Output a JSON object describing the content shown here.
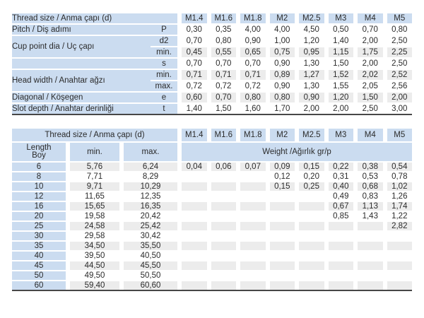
{
  "colors": {
    "header_blue": "#cbdcf0",
    "band_gray": "#ececec",
    "border_dark": "#474747",
    "text": "#2b2b2b"
  },
  "sizes": [
    "M1.4",
    "M1.6",
    "M1.8",
    "M2",
    "M2.5",
    "M3",
    "M4",
    "M5"
  ],
  "spec_table": {
    "header_label": "Thread size / Anma çapı (d)",
    "rows": [
      {
        "label": "Pitch / Diş adımı",
        "span": 1,
        "sym": "P",
        "band": false,
        "values": [
          "0,30",
          "0,35",
          "4,00",
          "4,00",
          "4,50",
          "0,50",
          "0,70",
          "0,80"
        ]
      },
      {
        "label": "Cup point dia / Uç çapı",
        "span": 2,
        "sym": "d2",
        "band": false,
        "values": [
          "0,70",
          "0,80",
          "0,90",
          "1,00",
          "1,20",
          "1,40",
          "2,00",
          "2,50"
        ]
      },
      {
        "sym": "min.",
        "band": true,
        "values": [
          "0,45",
          "0,55",
          "0,65",
          "0,75",
          "0,95",
          "1,15",
          "1,75",
          "2,25"
        ]
      },
      {
        "label": "",
        "span": 1,
        "sym": "s",
        "band": false,
        "values": [
          "0,70",
          "0,70",
          "0,70",
          "0,90",
          "1,30",
          "1,50",
          "2,00",
          "2,50"
        ]
      },
      {
        "label": "Head width / Anahtar ağzı",
        "span": 2,
        "sym": "min.",
        "band": true,
        "values": [
          "0,71",
          "0,71",
          "0,71",
          "0,89",
          "1,27",
          "1,52",
          "2,02",
          "2,52"
        ]
      },
      {
        "sym": "max.",
        "band": false,
        "values": [
          "0,72",
          "0,72",
          "0,72",
          "0,90",
          "1,30",
          "1,55",
          "2,05",
          "2,56"
        ]
      },
      {
        "label": "Diagonal / Köşegen",
        "span": 1,
        "sym": "e",
        "band": true,
        "values": [
          "0,60",
          "0,70",
          "0,80",
          "0,80",
          "0,90",
          "1,20",
          "1,50",
          "2,00"
        ]
      },
      {
        "label": "Slot depth / Anahtar derinliği",
        "span": 1,
        "sym": "t",
        "band": false,
        "values": [
          "1,40",
          "1,50",
          "1,60",
          "1,70",
          "2,00",
          "2,00",
          "2,50",
          "3,00"
        ]
      }
    ]
  },
  "weight_table": {
    "header_label": "Thread size / Anma çapı (d)",
    "length_label_line1": "Length",
    "length_label_line2": "Boy",
    "min_label": "min.",
    "max_label": "max.",
    "weight_label": "Weight /Ağırlık gr/p",
    "rows": [
      {
        "len": "6",
        "min": "5,76",
        "max": "6,24",
        "band": true,
        "w": [
          "0,04",
          "0,06",
          "0,07",
          "0,09",
          "0,15",
          "0,22",
          "0,38",
          "0,54"
        ]
      },
      {
        "len": "8",
        "min": "7,71",
        "max": "8,29",
        "band": false,
        "w": [
          "",
          "",
          "",
          "0,12",
          "0,20",
          "0,31",
          "0,53",
          "0,78"
        ]
      },
      {
        "len": "10",
        "min": "9,71",
        "max": "10,29",
        "band": true,
        "w": [
          "",
          "",
          "",
          "0,15",
          "0,25",
          "0,40",
          "0,68",
          "1,02"
        ]
      },
      {
        "len": "12",
        "min": "11,65",
        "max": "12,35",
        "band": false,
        "w": [
          "",
          "",
          "",
          "",
          "",
          "0,49",
          "0,83",
          "1,26"
        ]
      },
      {
        "len": "16",
        "min": "15,65",
        "max": "16,35",
        "band": true,
        "w": [
          "",
          "",
          "",
          "",
          "",
          "0,67",
          "1,13",
          "1,74"
        ]
      },
      {
        "len": "20",
        "min": "19,58",
        "max": "20,42",
        "band": false,
        "w": [
          "",
          "",
          "",
          "",
          "",
          "0,85",
          "1,43",
          "1,22"
        ]
      },
      {
        "len": "25",
        "min": "24,58",
        "max": "25,42",
        "band": true,
        "w": [
          "",
          "",
          "",
          "",
          "",
          "",
          "",
          "2,82"
        ]
      },
      {
        "len": "30",
        "min": "29,58",
        "max": "30,42",
        "band": false,
        "w": [
          "",
          "",
          "",
          "",
          "",
          "",
          "",
          ""
        ]
      },
      {
        "len": "35",
        "min": "34,50",
        "max": "35,50",
        "band": true,
        "w": [
          "",
          "",
          "",
          "",
          "",
          "",
          "",
          ""
        ]
      },
      {
        "len": "40",
        "min": "39,50",
        "max": "40,50",
        "band": false,
        "w": [
          "",
          "",
          "",
          "",
          "",
          "",
          "",
          ""
        ]
      },
      {
        "len": "45",
        "min": "44,50",
        "max": "45,50",
        "band": true,
        "w": [
          "",
          "",
          "",
          "",
          "",
          "",
          "",
          ""
        ]
      },
      {
        "len": "50",
        "min": "49,50",
        "max": "50,50",
        "band": false,
        "w": [
          "",
          "",
          "",
          "",
          "",
          "",
          "",
          ""
        ]
      },
      {
        "len": "60",
        "min": "59,40",
        "max": "60,60",
        "band": true,
        "w": [
          "",
          "",
          "",
          "",
          "",
          "",
          "",
          ""
        ]
      }
    ]
  }
}
